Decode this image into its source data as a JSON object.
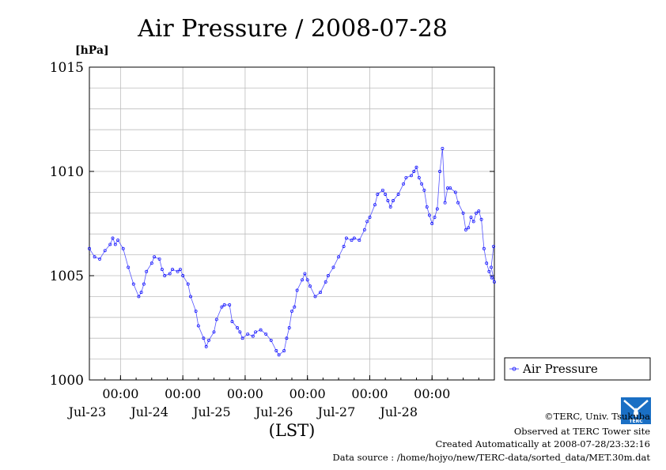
{
  "chart_data": {
    "type": "line",
    "title": "Air Pressure / 2008-07-28",
    "ylabel": "[hPa]",
    "xlabel": "(LST)",
    "ylim": [
      1000,
      1015
    ],
    "yticks": [
      "1000",
      "1005",
      "1010",
      "1015"
    ],
    "xlim": [
      "2008-07-22 12:00",
      "2008-07-29 00:00"
    ],
    "xticks": [
      {
        "time": "00:00",
        "date": "Jul-23"
      },
      {
        "time": "00:00",
        "date": "Jul-24"
      },
      {
        "time": "00:00",
        "date": "Jul-25"
      },
      {
        "time": "00:00",
        "date": "Jul-26"
      },
      {
        "time": "00:00",
        "date": "Jul-27"
      },
      {
        "time": "00:00",
        "date": "Jul-28"
      }
    ],
    "grid": true,
    "legend": "bottom-right",
    "series": [
      {
        "name": "Air Pressure",
        "color": "#0000ff",
        "points": [
          [
            "2008-07-22 12:00",
            1006.3
          ],
          [
            "2008-07-22 14:00",
            1005.9
          ],
          [
            "2008-07-22 16:00",
            1005.8
          ],
          [
            "2008-07-22 18:00",
            1006.2
          ],
          [
            "2008-07-22 20:00",
            1006.5
          ],
          [
            "2008-07-22 21:00",
            1006.8
          ],
          [
            "2008-07-22 22:00",
            1006.5
          ],
          [
            "2008-07-22 23:00",
            1006.7
          ],
          [
            "2008-07-23 01:00",
            1006.3
          ],
          [
            "2008-07-23 03:00",
            1005.4
          ],
          [
            "2008-07-23 05:00",
            1004.6
          ],
          [
            "2008-07-23 07:00",
            1004.0
          ],
          [
            "2008-07-23 08:00",
            1004.2
          ],
          [
            "2008-07-23 09:00",
            1004.6
          ],
          [
            "2008-07-23 10:00",
            1005.2
          ],
          [
            "2008-07-23 12:00",
            1005.6
          ],
          [
            "2008-07-23 13:00",
            1005.9
          ],
          [
            "2008-07-23 15:00",
            1005.8
          ],
          [
            "2008-07-23 16:00",
            1005.3
          ],
          [
            "2008-07-23 17:00",
            1005.0
          ],
          [
            "2008-07-23 19:00",
            1005.1
          ],
          [
            "2008-07-23 20:00",
            1005.3
          ],
          [
            "2008-07-23 22:00",
            1005.2
          ],
          [
            "2008-07-23 23:00",
            1005.3
          ],
          [
            "2008-07-24 00:00",
            1005.0
          ],
          [
            "2008-07-24 02:00",
            1004.6
          ],
          [
            "2008-07-24 03:00",
            1004.0
          ],
          [
            "2008-07-24 05:00",
            1003.3
          ],
          [
            "2008-07-24 06:00",
            1002.6
          ],
          [
            "2008-07-24 08:00",
            1002.0
          ],
          [
            "2008-07-24 09:00",
            1001.6
          ],
          [
            "2008-07-24 10:00",
            1001.9
          ],
          [
            "2008-07-24 12:00",
            1002.3
          ],
          [
            "2008-07-24 13:00",
            1002.9
          ],
          [
            "2008-07-24 15:00",
            1003.5
          ],
          [
            "2008-07-24 16:00",
            1003.6
          ],
          [
            "2008-07-24 18:00",
            1003.6
          ],
          [
            "2008-07-24 19:00",
            1002.8
          ],
          [
            "2008-07-24 21:00",
            1002.5
          ],
          [
            "2008-07-24 22:00",
            1002.3
          ],
          [
            "2008-07-24 23:00",
            1002.0
          ],
          [
            "2008-07-25 01:00",
            1002.2
          ],
          [
            "2008-07-25 03:00",
            1002.1
          ],
          [
            "2008-07-25 04:00",
            1002.3
          ],
          [
            "2008-07-25 06:00",
            1002.4
          ],
          [
            "2008-07-25 08:00",
            1002.2
          ],
          [
            "2008-07-25 10:00",
            1001.9
          ],
          [
            "2008-07-25 12:00",
            1001.4
          ],
          [
            "2008-07-25 13:00",
            1001.2
          ],
          [
            "2008-07-25 15:00",
            1001.4
          ],
          [
            "2008-07-25 16:00",
            1002.0
          ],
          [
            "2008-07-25 17:00",
            1002.5
          ],
          [
            "2008-07-25 18:00",
            1003.3
          ],
          [
            "2008-07-25 19:00",
            1003.5
          ],
          [
            "2008-07-25 20:00",
            1004.3
          ],
          [
            "2008-07-25 22:00",
            1004.8
          ],
          [
            "2008-07-25 23:00",
            1005.1
          ],
          [
            "2008-07-26 00:00",
            1004.8
          ],
          [
            "2008-07-26 01:00",
            1004.5
          ],
          [
            "2008-07-26 03:00",
            1004.0
          ],
          [
            "2008-07-26 05:00",
            1004.2
          ],
          [
            "2008-07-26 07:00",
            1004.7
          ],
          [
            "2008-07-26 08:00",
            1005.0
          ],
          [
            "2008-07-26 10:00",
            1005.4
          ],
          [
            "2008-07-26 12:00",
            1005.9
          ],
          [
            "2008-07-26 14:00",
            1006.4
          ],
          [
            "2008-07-26 15:00",
            1006.8
          ],
          [
            "2008-07-26 17:00",
            1006.7
          ],
          [
            "2008-07-26 18:00",
            1006.8
          ],
          [
            "2008-07-26 20:00",
            1006.7
          ],
          [
            "2008-07-26 22:00",
            1007.2
          ],
          [
            "2008-07-26 23:00",
            1007.6
          ],
          [
            "2008-07-27 00:00",
            1007.8
          ],
          [
            "2008-07-27 02:00",
            1008.4
          ],
          [
            "2008-07-27 03:00",
            1008.9
          ],
          [
            "2008-07-27 05:00",
            1009.1
          ],
          [
            "2008-07-27 06:00",
            1008.9
          ],
          [
            "2008-07-27 07:00",
            1008.6
          ],
          [
            "2008-07-27 08:00",
            1008.3
          ],
          [
            "2008-07-27 09:00",
            1008.6
          ],
          [
            "2008-07-27 11:00",
            1008.9
          ],
          [
            "2008-07-27 13:00",
            1009.4
          ],
          [
            "2008-07-27 14:00",
            1009.7
          ],
          [
            "2008-07-27 16:00",
            1009.8
          ],
          [
            "2008-07-27 17:00",
            1010.0
          ],
          [
            "2008-07-27 18:00",
            1010.2
          ],
          [
            "2008-07-27 19:00",
            1009.7
          ],
          [
            "2008-07-27 20:00",
            1009.4
          ],
          [
            "2008-07-27 21:00",
            1009.1
          ],
          [
            "2008-07-27 22:00",
            1008.3
          ],
          [
            "2008-07-27 23:00",
            1007.9
          ],
          [
            "2008-07-28 00:00",
            1007.5
          ],
          [
            "2008-07-28 01:00",
            1007.8
          ],
          [
            "2008-07-28 02:00",
            1008.2
          ],
          [
            "2008-07-28 03:00",
            1010.0
          ],
          [
            "2008-07-28 04:00",
            1011.1
          ],
          [
            "2008-07-28 05:00",
            1008.5
          ],
          [
            "2008-07-28 06:00",
            1009.2
          ],
          [
            "2008-07-28 07:00",
            1009.2
          ],
          [
            "2008-07-28 09:00",
            1009.0
          ],
          [
            "2008-07-28 10:00",
            1008.5
          ],
          [
            "2008-07-28 12:00",
            1008.0
          ],
          [
            "2008-07-28 13:00",
            1007.2
          ],
          [
            "2008-07-28 14:00",
            1007.3
          ],
          [
            "2008-07-28 15:00",
            1007.8
          ],
          [
            "2008-07-28 16:00",
            1007.6
          ],
          [
            "2008-07-28 17:00",
            1008.0
          ],
          [
            "2008-07-28 18:00",
            1008.1
          ],
          [
            "2008-07-28 19:00",
            1007.7
          ],
          [
            "2008-07-28 20:00",
            1006.3
          ],
          [
            "2008-07-28 21:00",
            1005.6
          ],
          [
            "2008-07-28 22:00",
            1005.2
          ],
          [
            "2008-07-28 23:00",
            1004.9
          ],
          [
            "2008-07-29 00:00",
            1004.7
          ],
          [
            "2008-07-29 00:00",
            1005.4
          ],
          [
            "2008-07-29 00:00",
            1006.4
          ]
        ]
      }
    ]
  },
  "credits": {
    "line1": "©TERC, Univ. Tsukuba",
    "line2": "Observed at TERC Tower site",
    "line3": "Created Automatically at 2008-07-28/23:32:16",
    "line4": "Data source : /home/hojyo/new/TERC-data/sorted_data/MET.30m.dat"
  },
  "logo": {
    "text": "TERC",
    "color": "#1a6fc4",
    "icon": "terc-logo-icon"
  }
}
